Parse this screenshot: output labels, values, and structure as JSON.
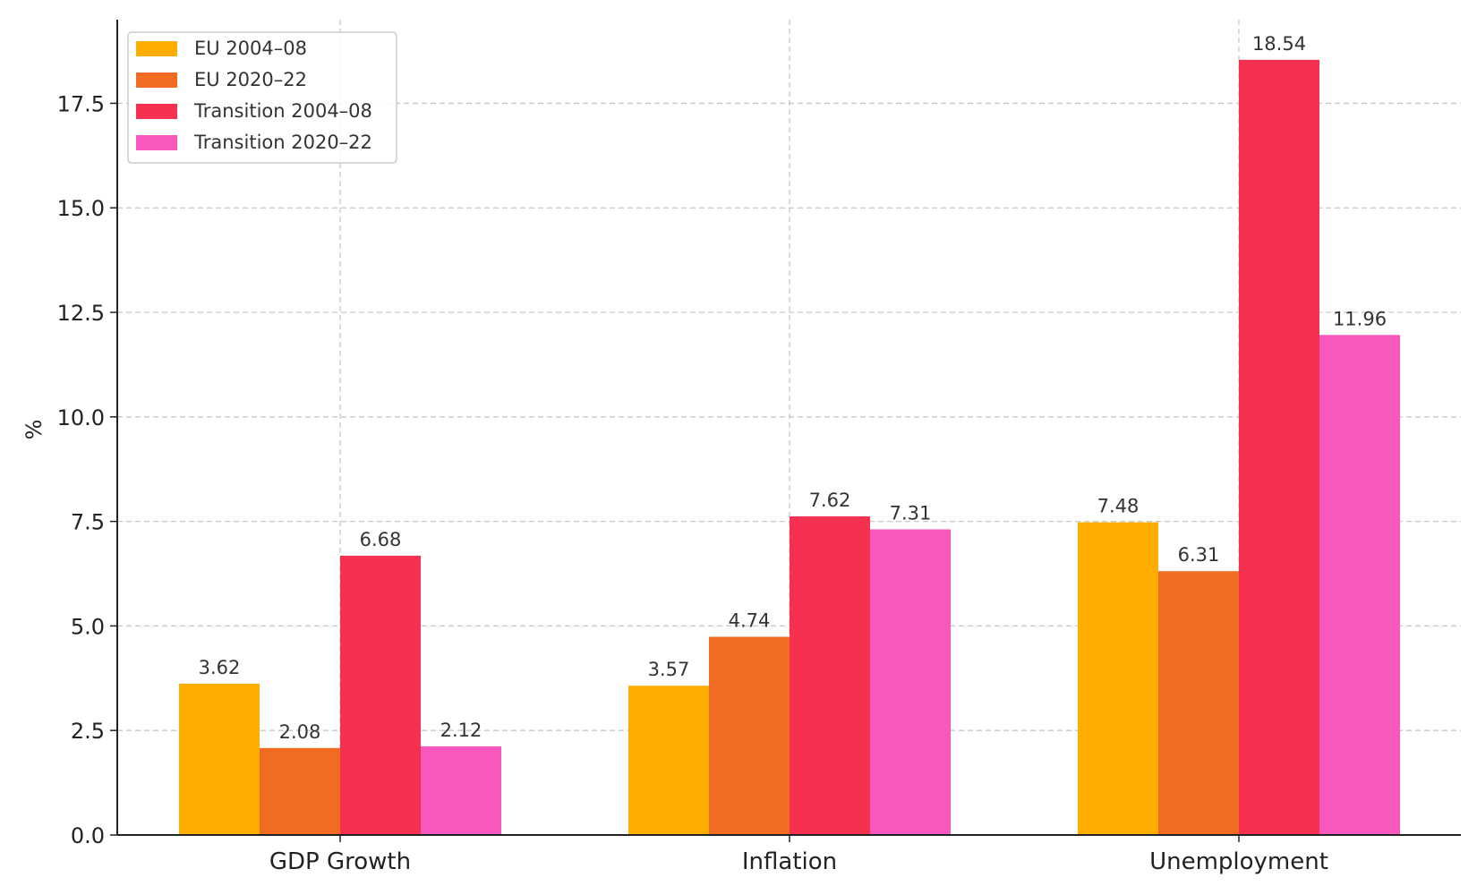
{
  "chart_data": {
    "type": "bar",
    "title": "",
    "xlabel": "",
    "ylabel": "%",
    "ylim": [
      0,
      19.5
    ],
    "yticks": [
      "0.0",
      "2.5",
      "5.0",
      "7.5",
      "10.0",
      "12.5",
      "15.0",
      "17.5"
    ],
    "ytick_values": [
      0,
      2.5,
      5,
      7.5,
      10,
      12.5,
      15,
      17.5
    ],
    "grid": true,
    "legend_position": "top-left",
    "categories": [
      "GDP Growth",
      "Inflation",
      "Unemployment"
    ],
    "series": [
      {
        "name": "EU 2004–08",
        "color": "#FFAD00",
        "values": [
          3.62,
          3.57,
          7.48
        ],
        "labels": [
          "3.62",
          "3.57",
          "7.48"
        ]
      },
      {
        "name": "EU 2020–22",
        "color": "#F26B22",
        "values": [
          2.08,
          4.74,
          6.31
        ],
        "labels": [
          "2.08",
          "4.74",
          "6.31"
        ]
      },
      {
        "name": "Transition 2004–08",
        "color": "#F63150",
        "values": [
          6.68,
          7.62,
          18.54
        ],
        "labels": [
          "6.68",
          "7.62",
          "18.54"
        ]
      },
      {
        "name": "Transition 2020–22",
        "color": "#F857BE",
        "values": [
          2.12,
          7.31,
          11.96
        ],
        "labels": [
          "2.12",
          "7.31",
          "11.96"
        ]
      }
    ]
  }
}
